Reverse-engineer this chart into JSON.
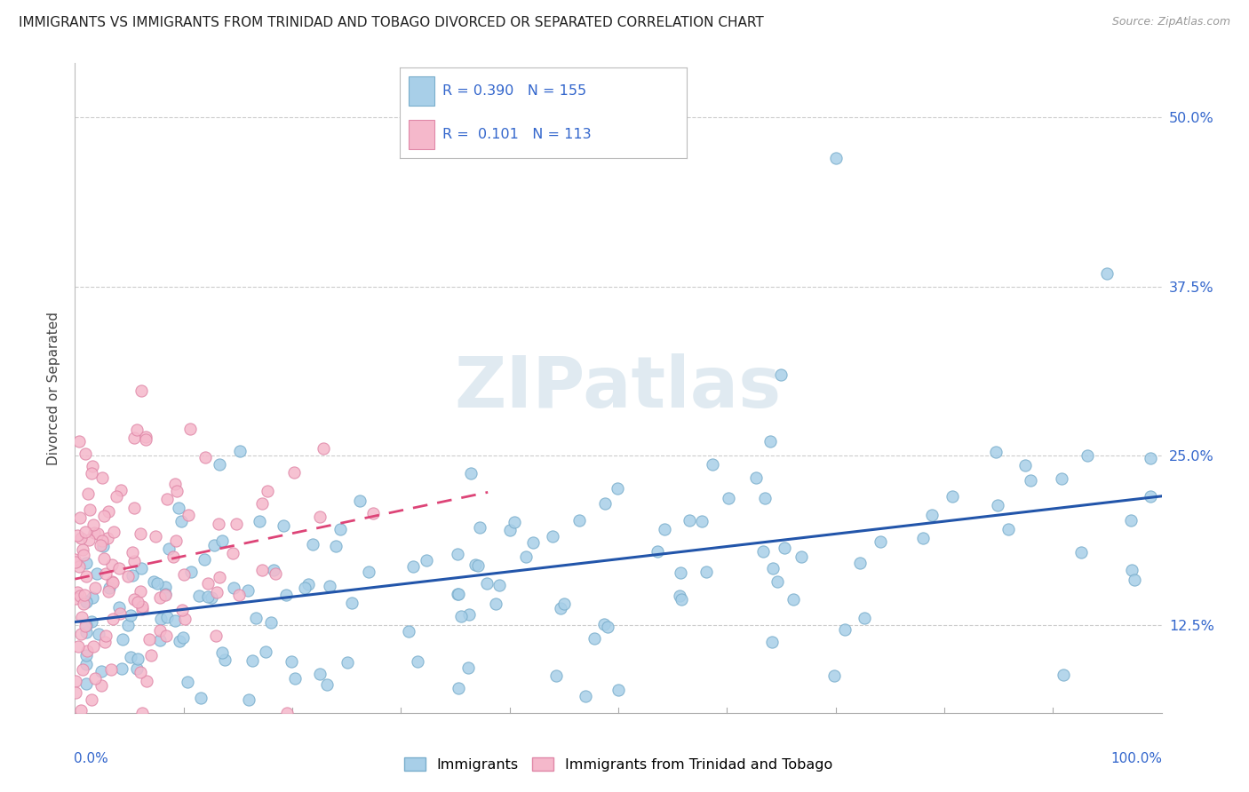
{
  "title": "IMMIGRANTS VS IMMIGRANTS FROM TRINIDAD AND TOBAGO DIVORCED OR SEPARATED CORRELATION CHART",
  "source": "Source: ZipAtlas.com",
  "ylabel": "Divorced or Separated",
  "yticks": [
    0.125,
    0.25,
    0.375,
    0.5
  ],
  "xlim": [
    0.0,
    1.0
  ],
  "ylim": [
    0.06,
    0.54
  ],
  "blue_R": 0.39,
  "blue_N": 155,
  "pink_R": 0.101,
  "pink_N": 113,
  "blue_color": "#a8cfe8",
  "pink_color": "#f5b8cb",
  "blue_edge": "#7aaecc",
  "pink_edge": "#e088a8",
  "blue_trend_color": "#2255aa",
  "pink_trend_color": "#dd4477",
  "watermark_color": "#ccdde8",
  "bottom_legend_blue": "Immigrants",
  "bottom_legend_pink": "Immigrants from Trinidad and Tobago"
}
